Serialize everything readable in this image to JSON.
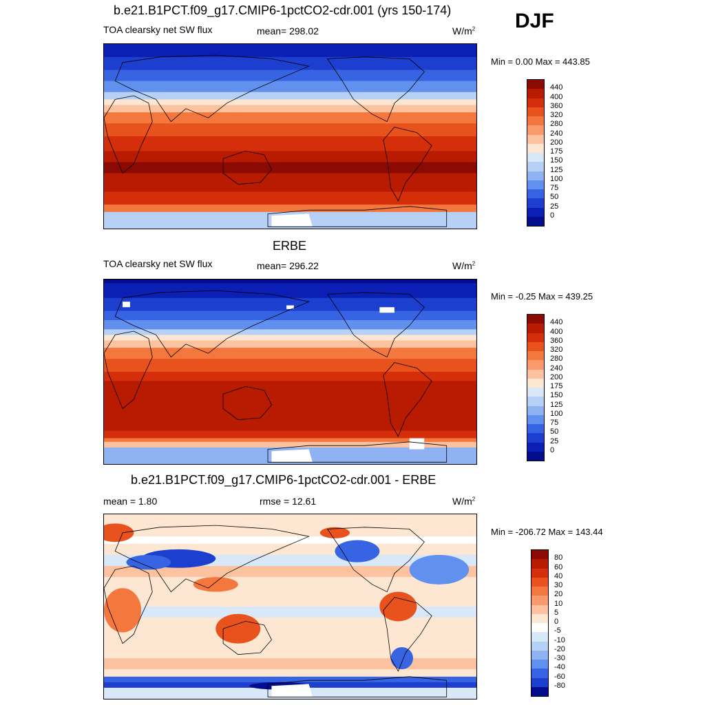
{
  "season": "DJF",
  "panels": [
    {
      "title": "b.e21.B1PCT.f09_g17.CMIP6-1pctCO2-cdr.001 (yrs 150-174)",
      "left_label": "TOA clearsky net SW flux",
      "mid_label": "mean= 298.02",
      "units_base": "W/m",
      "units_exp": "2",
      "minmax": "Min =   0.00 Max = 443.85",
      "map_type": "absolute",
      "colorbar": {
        "labels": [
          "440",
          "400",
          "360",
          "320",
          "280",
          "240",
          "200",
          "175",
          "150",
          "125",
          "100",
          "75",
          "50",
          "25",
          "0"
        ],
        "colors": [
          "#8c0a04",
          "#b81b02",
          "#d42f0a",
          "#e8521d",
          "#f4773d",
          "#fa9a6b",
          "#fdc3a1",
          "#fde7d3",
          "#d9e8f9",
          "#b7d0f6",
          "#8fb2f3",
          "#6190ee",
          "#3764e2",
          "#1c3fd0",
          "#0b1fb4",
          "#030c8c"
        ]
      }
    },
    {
      "title": "ERBE",
      "left_label": "TOA clearsky net SW flux",
      "mid_label": "mean= 296.22",
      "units_base": "W/m",
      "units_exp": "2",
      "minmax": "Min =  -0.25 Max = 439.25",
      "map_type": "absolute",
      "colorbar": {
        "labels": [
          "440",
          "400",
          "360",
          "320",
          "280",
          "240",
          "200",
          "175",
          "150",
          "125",
          "100",
          "75",
          "50",
          "25",
          "0"
        ],
        "colors": [
          "#8c0a04",
          "#b81b02",
          "#d42f0a",
          "#e8521d",
          "#f4773d",
          "#fa9a6b",
          "#fdc3a1",
          "#fde7d3",
          "#d9e8f9",
          "#b7d0f6",
          "#8fb2f3",
          "#6190ee",
          "#3764e2",
          "#1c3fd0",
          "#0b1fb4",
          "#030c8c"
        ]
      }
    },
    {
      "title": "b.e21.B1PCT.f09_g17.CMIP6-1pctCO2-cdr.001 - ERBE",
      "left_label": "mean =   1.80",
      "mid_label": "rmse =  12.61",
      "units_base": "W/m",
      "units_exp": "2",
      "minmax": "Min = -206.72 Max = 143.44",
      "map_type": "difference",
      "colorbar": {
        "labels": [
          "80",
          "60",
          "40",
          "30",
          "20",
          "10",
          "5",
          "0",
          "-5",
          "-10",
          "-20",
          "-30",
          "-40",
          "-60",
          "-80"
        ],
        "colors": [
          "#8c0a04",
          "#b81b02",
          "#d42f0a",
          "#e8521d",
          "#f4773d",
          "#fa9a6b",
          "#fdc3a1",
          "#fde7d3",
          "#ffffff",
          "#d9e8f9",
          "#b7d0f6",
          "#8fb2f3",
          "#6190ee",
          "#3764e2",
          "#1c3fd0",
          "#030c8c"
        ]
      }
    }
  ]
}
